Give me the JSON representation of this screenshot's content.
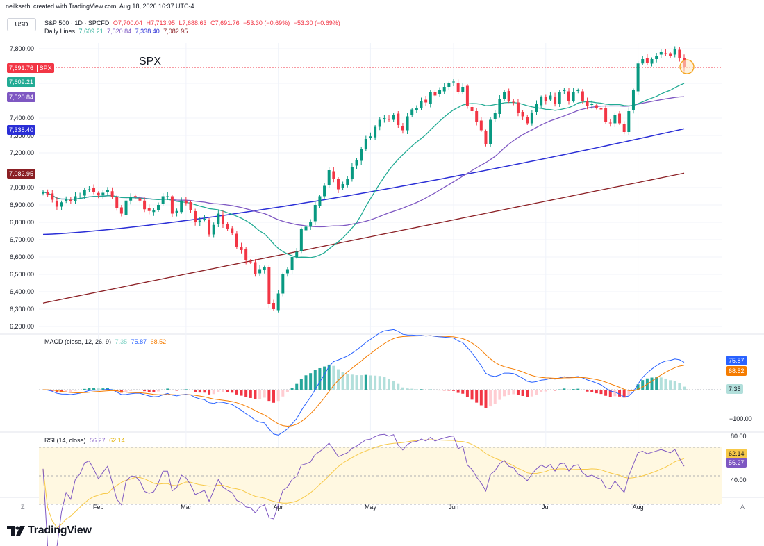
{
  "header": {
    "credit": "neilksethi created with TradingView.com, Aug 18, 2026 16:37 UTC-4",
    "currency_button": "USD",
    "symbol_name": "S&P 500 · 1D · SPCFD",
    "ohlc": {
      "o": "O7,700.04",
      "h": "H7,713.95",
      "l": "L7,688.63",
      "c": "C7,691.76",
      "chg": "−53.30 (−0.69%)",
      "chg2": "−53.30 (−0.69%)"
    },
    "daily_lines_label": "Daily Lines",
    "daily_lines_values": [
      "7,609.21",
      "7,520.84",
      "7,338.40",
      "7,082.95"
    ]
  },
  "annotation": "SPX",
  "price_tags": {
    "last": {
      "value": "7,691.76",
      "symbol": "SPX",
      "color": "#f23645"
    },
    "ma1": {
      "value": "7,609.21",
      "color": "#22ab94"
    },
    "ma2": {
      "value": "7,520.84",
      "color": "#7e57c2"
    },
    "ma3": {
      "value": "7,338.40",
      "color": "#2a2ed6"
    },
    "ma4": {
      "value": "7,082.95",
      "color": "#8b1f24"
    }
  },
  "macd_legend": {
    "label": "MACD (close, 12, 26, 9)",
    "v1": "7.35",
    "v2": "75.87",
    "v3": "68.52"
  },
  "macd_tags": {
    "macd": "75.87",
    "signal": "68.52",
    "hist": "7.35",
    "low_tick": "−100.00"
  },
  "rsi_legend": {
    "label": "RSI (14, close)",
    "v1": "56.27",
    "v2": "62.14"
  },
  "rsi_tags": {
    "rsi": "56.27",
    "ma": "62.14",
    "tick_high": "80.00",
    "tick_low": "40.00"
  },
  "footer": {
    "brand": "TradingView",
    "left_btn": "Z",
    "right_btn": "A"
  },
  "colors": {
    "up": "#089981",
    "down": "#f23645",
    "ma20": "#22ab94",
    "ma50": "#7e57c2",
    "ma100": "#2a2ed6",
    "ma200": "#8b1f24",
    "macd": "#2962ff",
    "signal": "#f57c00",
    "rsi": "#7e57c2",
    "rsi_ma": "#f7c948"
  },
  "chart_data": {
    "type": "candlestick",
    "title": "S&P 500 · 1D · SPCFD",
    "y_ticks": [
      7800,
      7600,
      7400,
      7300,
      7200,
      7000,
      6900,
      6800,
      6700,
      6600,
      6500,
      6400,
      6300,
      6200
    ],
    "y_tick_labels": [
      "7,800.00",
      "7,600.00",
      "7,400.00",
      "7,300.00",
      "7,200.00",
      "7,000.00",
      "6,900.00",
      "6,800.00",
      "6,700.00",
      "6,600.00",
      "6,500.00",
      "6,400.00",
      "6,300.00",
      "6,200.00"
    ],
    "x_labels": [
      "Feb",
      "Mar",
      "Apr",
      "May",
      "Jun",
      "Jul",
      "Aug"
    ],
    "x_label_index": [
      12,
      31,
      51,
      71,
      89,
      109,
      129
    ],
    "close": [
      6975,
      6960,
      6930,
      6890,
      6915,
      6935,
      6920,
      6950,
      6960,
      6985,
      6990,
      6975,
      6955,
      6970,
      6985,
      6945,
      6880,
      6850,
      6925,
      6945,
      6945,
      6925,
      6875,
      6865,
      6870,
      6900,
      6950,
      6950,
      6850,
      6865,
      6925,
      6910,
      6870,
      6800,
      6810,
      6820,
      6730,
      6785,
      6850,
      6790,
      6760,
      6740,
      6660,
      6640,
      6580,
      6570,
      6500,
      6530,
      6540,
      6330,
      6300,
      6390,
      6500,
      6530,
      6600,
      6630,
      6760,
      6775,
      6800,
      6900,
      6950,
      7010,
      7100,
      7050,
      6990,
      7020,
      7050,
      7120,
      7160,
      7220,
      7280,
      7295,
      7350,
      7390,
      7400,
      7390,
      7420,
      7360,
      7330,
      7410,
      7450,
      7460,
      7500,
      7490,
      7550,
      7530,
      7560,
      7580,
      7600,
      7610,
      7550,
      7580,
      7470,
      7440,
      7380,
      7330,
      7250,
      7390,
      7430,
      7510,
      7550,
      7500,
      7490,
      7430,
      7410,
      7370,
      7430,
      7480,
      7520,
      7500,
      7530,
      7480,
      7550,
      7560,
      7500,
      7550,
      7560,
      7500,
      7470,
      7480,
      7460,
      7450,
      7380,
      7370,
      7420,
      7370,
      7320,
      7440,
      7560,
      7715,
      7740,
      7720,
      7740,
      7760,
      7780,
      7770,
      7760,
      7800,
      7745,
      7692
    ],
    "ma20_final": 7609.21,
    "ma50_final": 7520.84,
    "ma100_final": 7338.4,
    "ma200_final": 7082.95,
    "macd_ticks": [
      -100
    ],
    "rsi_ticks": [
      80,
      40
    ]
  }
}
